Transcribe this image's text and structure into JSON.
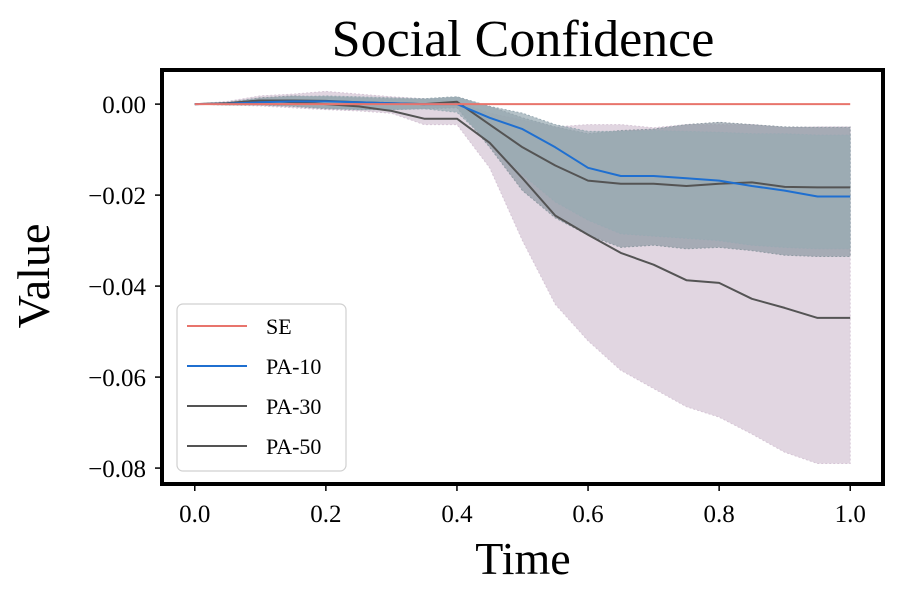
{
  "chart_data": {
    "type": "line",
    "title": "Social Confidence",
    "xlabel": "Time",
    "ylabel": "Value",
    "xlim": [
      -0.05,
      1.05
    ],
    "ylim": [
      -0.0835,
      0.0075
    ],
    "xticks": [
      0.0,
      0.2,
      0.4,
      0.6,
      0.8,
      1.0
    ],
    "xtick_labels": [
      "0.0",
      "0.2",
      "0.4",
      "0.6",
      "0.8",
      "1.0"
    ],
    "yticks": [
      0.0,
      -0.02,
      -0.04,
      -0.06,
      -0.08
    ],
    "ytick_labels": [
      "0.00",
      "−0.02",
      "−0.04",
      "−0.06",
      "−0.08"
    ],
    "grid": false,
    "legend_position": "lower-left",
    "x": [
      0.0,
      0.05,
      0.1,
      0.15,
      0.2,
      0.25,
      0.3,
      0.35,
      0.4,
      0.45,
      0.5,
      0.55,
      0.6,
      0.65,
      0.7,
      0.75,
      0.8,
      0.85,
      0.9,
      0.95,
      1.0
    ],
    "series": [
      {
        "name": "SE",
        "color": "#e8746c",
        "values": [
          0,
          0,
          0,
          0,
          0,
          0,
          0,
          0,
          0,
          0,
          0,
          0,
          0,
          0,
          0,
          0,
          0,
          0,
          0,
          0,
          0
        ],
        "band_lower": null,
        "band_upper": null,
        "band_color": null
      },
      {
        "name": "PA-10",
        "color": "#1f6fd0",
        "values": [
          0,
          0.0001,
          0.0004,
          0.0006,
          0.0006,
          0.0004,
          0.0002,
          0.0,
          0.0,
          -0.003,
          -0.0055,
          -0.0095,
          -0.014,
          -0.0158,
          -0.0158,
          -0.0163,
          -0.0168,
          -0.018,
          -0.019,
          -0.0203,
          -0.0203
        ],
        "band_lower": [
          0,
          -0.0002,
          -0.0002,
          -0.0004,
          -0.0008,
          -0.0012,
          -0.0012,
          -0.001,
          -0.0018,
          -0.0085,
          -0.0155,
          -0.0215,
          -0.0255,
          -0.0285,
          -0.029,
          -0.0295,
          -0.03,
          -0.031,
          -0.0315,
          -0.0318,
          -0.0318
        ],
        "band_upper": [
          0,
          0.0003,
          0.0012,
          0.0016,
          0.0018,
          0.0016,
          0.0014,
          0.0012,
          0.0016,
          -0.0005,
          -0.002,
          -0.0045,
          -0.006,
          -0.006,
          -0.0058,
          -0.006,
          -0.0062,
          -0.0065,
          -0.0065,
          -0.0068,
          -0.0068
        ],
        "band_color": "#99aab3"
      },
      {
        "name": "PA-30",
        "color": "#545454",
        "values": [
          0,
          0.0002,
          0.0008,
          0.0008,
          0.0007,
          0.0004,
          0.0002,
          0.0,
          0.0005,
          -0.0045,
          -0.0095,
          -0.0135,
          -0.0168,
          -0.0175,
          -0.0175,
          -0.018,
          -0.0175,
          -0.0172,
          -0.0182,
          -0.0183,
          -0.0183
        ],
        "band_lower": [
          0,
          -0.0002,
          -0.0002,
          -0.0005,
          -0.001,
          -0.0012,
          -0.0012,
          -0.001,
          -0.0008,
          -0.0095,
          -0.019,
          -0.025,
          -0.0288,
          -0.0315,
          -0.031,
          -0.0318,
          -0.0315,
          -0.0322,
          -0.0332,
          -0.0335,
          -0.0335
        ],
        "band_upper": [
          0,
          0.0004,
          0.0014,
          0.0018,
          0.0016,
          0.0014,
          0.0012,
          0.0012,
          0.0016,
          -0.0005,
          -0.003,
          -0.005,
          -0.0065,
          -0.0058,
          -0.0055,
          -0.0045,
          -0.004,
          -0.0045,
          -0.005,
          -0.0051,
          -0.0051
        ],
        "band_color": "#8f9aa3"
      },
      {
        "name": "PA-50",
        "color": "#545454",
        "values": [
          0,
          0.0002,
          0.0008,
          0.0004,
          0.0,
          -0.0005,
          -0.0015,
          -0.0032,
          -0.0032,
          -0.0085,
          -0.0163,
          -0.0245,
          -0.0287,
          -0.0327,
          -0.0353,
          -0.0387,
          -0.0393,
          -0.0428,
          -0.0448,
          -0.047,
          -0.047
        ],
        "band_lower": [
          0,
          -0.0002,
          -0.0004,
          -0.0008,
          -0.0012,
          -0.0015,
          -0.002,
          -0.0045,
          -0.0045,
          -0.014,
          -0.03,
          -0.044,
          -0.052,
          -0.0585,
          -0.0625,
          -0.0665,
          -0.0688,
          -0.0725,
          -0.0765,
          -0.079,
          -0.079
        ],
        "band_upper": [
          0,
          0.0006,
          0.0018,
          0.0022,
          0.0028,
          0.0022,
          0.0016,
          0.0012,
          0.0005,
          -0.002,
          -0.0035,
          -0.005,
          -0.0045,
          -0.0045,
          -0.0052,
          -0.0045,
          -0.0045,
          -0.0045,
          -0.0052,
          -0.005,
          -0.005
        ],
        "band_color": "#d6c6d6"
      }
    ]
  }
}
